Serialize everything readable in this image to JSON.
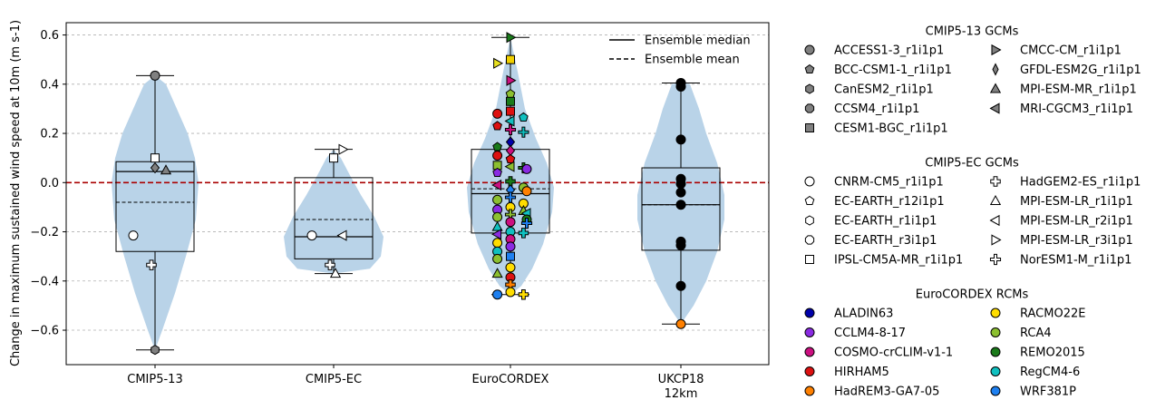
{
  "chart_data": {
    "type": "violin",
    "ylabel": "Change in maximum sustained wind speed at 10m (m s-1)",
    "ylim": [
      -0.74,
      0.65
    ],
    "yticks": [
      -0.6,
      -0.4,
      -0.2,
      0.0,
      0.2,
      0.4,
      0.6
    ],
    "ytick_labels": [
      "−0.6",
      "−0.4",
      "−0.2",
      "0.0",
      "0.2",
      "0.4",
      "0.6"
    ],
    "grid": "horizontal dashed",
    "zero_line_color": "#aa0000",
    "violin_color": "#b9d3e8",
    "categories": [
      "CMIP5-13",
      "CMIP5-EC",
      "EuroCORDEX",
      "UKCP18\n12km"
    ],
    "category_labels": [
      [
        "CMIP5-13"
      ],
      [
        "CMIP5-EC"
      ],
      [
        "EuroCORDEX"
      ],
      [
        "UKCP18",
        "12km"
      ]
    ],
    "groups": [
      {
        "name": "CMIP5-13",
        "min": -0.68,
        "q1": -0.28,
        "median": 0.045,
        "mean": -0.08,
        "q3": 0.085,
        "max": 0.435,
        "points": [
          {
            "y": 0.435,
            "shape": "circle",
            "fill": "#808080"
          },
          {
            "y": 0.1,
            "shape": "square",
            "fill": "#ffffff"
          },
          {
            "y": 0.06,
            "shape": "diamond",
            "fill": "#808080"
          },
          {
            "y": 0.05,
            "shape": "triangle-up",
            "fill": "#808080"
          },
          {
            "y": -0.215,
            "shape": "circle",
            "fill": "#ffffff"
          },
          {
            "y": -0.335,
            "shape": "plus",
            "fill": "#ffffff"
          },
          {
            "y": -0.68,
            "shape": "hexagon",
            "fill": "#808080"
          }
        ]
      },
      {
        "name": "CMIP5-EC",
        "min": -0.37,
        "q1": -0.31,
        "median": -0.22,
        "mean": -0.15,
        "q3": 0.02,
        "max": 0.135,
        "points": [
          {
            "y": 0.135,
            "shape": "triangle-right",
            "fill": "#ffffff"
          },
          {
            "y": 0.1,
            "shape": "square",
            "fill": "#ffffff"
          },
          {
            "y": -0.215,
            "shape": "circle",
            "fill": "#ffffff"
          },
          {
            "y": -0.215,
            "shape": "triangle-left",
            "fill": "#ffffff"
          },
          {
            "y": -0.335,
            "shape": "plus",
            "fill": "#ffffff"
          },
          {
            "y": -0.37,
            "shape": "triangle-up",
            "fill": "#ffffff"
          }
        ]
      },
      {
        "name": "EuroCORDEX",
        "min": -0.455,
        "q1": -0.205,
        "median": -0.045,
        "mean": -0.025,
        "q3": 0.135,
        "max": 0.59,
        "points": [
          {
            "y": 0.59,
            "shape": "triangle-right",
            "fill": "#1a7a1a"
          },
          {
            "y": 0.5,
            "shape": "square",
            "fill": "#f0d000"
          },
          {
            "y": 0.485,
            "shape": "triangle-right",
            "fill": "#e8e020"
          },
          {
            "y": 0.415,
            "shape": "triangle-right",
            "fill": "#cc1080"
          },
          {
            "y": 0.36,
            "shape": "pentagon",
            "fill": "#8cc030"
          },
          {
            "y": 0.33,
            "shape": "square",
            "fill": "#1a7a1a"
          },
          {
            "y": 0.29,
            "shape": "square",
            "fill": "#dd1111"
          },
          {
            "y": 0.28,
            "shape": "circle",
            "fill": "#dd1111"
          },
          {
            "y": 0.265,
            "shape": "pentagon",
            "fill": "#10c0c0"
          },
          {
            "y": 0.25,
            "shape": "triangle-left",
            "fill": "#10c0c0"
          },
          {
            "y": 0.23,
            "shape": "pentagon",
            "fill": "#dd1111"
          },
          {
            "y": 0.215,
            "shape": "cross",
            "fill": "#cc1080"
          },
          {
            "y": 0.205,
            "shape": "cross",
            "fill": "#10c0c0"
          },
          {
            "y": 0.165,
            "shape": "diamond",
            "fill": "#0000aa"
          },
          {
            "y": 0.145,
            "shape": "pentagon",
            "fill": "#1a7a1a"
          },
          {
            "y": 0.13,
            "shape": "diamond",
            "fill": "#cc1080"
          },
          {
            "y": 0.11,
            "shape": "circle",
            "fill": "#dd1111"
          },
          {
            "y": 0.095,
            "shape": "pentagon",
            "fill": "#dd1111"
          },
          {
            "y": 0.07,
            "shape": "square",
            "fill": "#8cc030"
          },
          {
            "y": 0.065,
            "shape": "triangle-left",
            "fill": "#8cc030"
          },
          {
            "y": 0.06,
            "shape": "cross",
            "fill": "#1a7a1a"
          },
          {
            "y": 0.055,
            "shape": "circle",
            "fill": "#8a2be2"
          },
          {
            "y": 0.04,
            "shape": "pentagon",
            "fill": "#8a2be2"
          },
          {
            "y": 0.005,
            "shape": "plus",
            "fill": "#1a7a1a"
          },
          {
            "y": -0.01,
            "shape": "triangle-left",
            "fill": "#cc1080"
          },
          {
            "y": -0.02,
            "shape": "circle",
            "fill": "#8cc030"
          },
          {
            "y": -0.03,
            "shape": "diamond",
            "fill": "#1e80f0"
          },
          {
            "y": -0.035,
            "shape": "circle",
            "fill": "#ff8000"
          },
          {
            "y": -0.06,
            "shape": "cross",
            "fill": "#1e80f0"
          },
          {
            "y": -0.07,
            "shape": "circle",
            "fill": "#8cc030"
          },
          {
            "y": -0.085,
            "shape": "circle",
            "fill": "#ffdd00"
          },
          {
            "y": -0.1,
            "shape": "circle",
            "fill": "#ffdd00"
          },
          {
            "y": -0.11,
            "shape": "circle",
            "fill": "#8a2be2"
          },
          {
            "y": -0.115,
            "shape": "triangle-up",
            "fill": "#8cc030"
          },
          {
            "y": -0.125,
            "shape": "triangle-left",
            "fill": "#10c0c0"
          },
          {
            "y": -0.13,
            "shape": "cross",
            "fill": "#8cc030"
          },
          {
            "y": -0.14,
            "shape": "circle",
            "fill": "#8cc030"
          },
          {
            "y": -0.15,
            "shape": "circle",
            "fill": "#1a7a1a"
          },
          {
            "y": -0.16,
            "shape": "circle",
            "fill": "#cc1080"
          },
          {
            "y": -0.165,
            "shape": "cross",
            "fill": "#1e80f0"
          },
          {
            "y": -0.18,
            "shape": "triangle-up",
            "fill": "#10c0c0"
          },
          {
            "y": -0.2,
            "shape": "circle",
            "fill": "#10c0c0"
          },
          {
            "y": -0.205,
            "shape": "plus",
            "fill": "#10c0c0"
          },
          {
            "y": -0.21,
            "shape": "triangle-left",
            "fill": "#8a2be2"
          },
          {
            "y": -0.23,
            "shape": "circle",
            "fill": "#cc1080"
          },
          {
            "y": -0.245,
            "shape": "circle",
            "fill": "#ffdd00"
          },
          {
            "y": -0.26,
            "shape": "circle",
            "fill": "#8a2be2"
          },
          {
            "y": -0.28,
            "shape": "circle",
            "fill": "#10c0c0"
          },
          {
            "y": -0.3,
            "shape": "square",
            "fill": "#1e80f0"
          },
          {
            "y": -0.31,
            "shape": "circle",
            "fill": "#8cc030"
          },
          {
            "y": -0.345,
            "shape": "circle",
            "fill": "#ffdd00"
          },
          {
            "y": -0.37,
            "shape": "triangle-up",
            "fill": "#8cc030"
          },
          {
            "y": -0.385,
            "shape": "circle",
            "fill": "#dd1111"
          },
          {
            "y": -0.415,
            "shape": "plus",
            "fill": "#ff8000"
          },
          {
            "y": -0.445,
            "shape": "circle",
            "fill": "#ffdd00"
          },
          {
            "y": -0.455,
            "shape": "circle",
            "fill": "#1e80f0"
          },
          {
            "y": -0.455,
            "shape": "plus",
            "fill": "#ffdd00"
          }
        ]
      },
      {
        "name": "UKCP18 12km",
        "min": -0.575,
        "q1": -0.275,
        "median": -0.09,
        "mean": -0.09,
        "q3": 0.06,
        "max": 0.405,
        "points": [
          {
            "y": 0.405,
            "shape": "circle",
            "fill": "#000000"
          },
          {
            "y": 0.39,
            "shape": "circle",
            "fill": "#000000"
          },
          {
            "y": 0.175,
            "shape": "circle",
            "fill": "#000000"
          },
          {
            "y": 0.015,
            "shape": "circle",
            "fill": "#000000"
          },
          {
            "y": -0.005,
            "shape": "circle",
            "fill": "#000000"
          },
          {
            "y": -0.04,
            "shape": "circle",
            "fill": "#000000"
          },
          {
            "y": -0.09,
            "shape": "circle",
            "fill": "#000000"
          },
          {
            "y": -0.24,
            "shape": "circle",
            "fill": "#000000"
          },
          {
            "y": -0.255,
            "shape": "circle",
            "fill": "#000000"
          },
          {
            "y": -0.42,
            "shape": "circle",
            "fill": "#000000"
          },
          {
            "y": -0.575,
            "shape": "circle",
            "fill": "#ff8000"
          }
        ]
      }
    ],
    "inner_legend": [
      {
        "label": "Ensemble median",
        "style": "solid"
      },
      {
        "label": "Ensemble mean",
        "style": "dashed"
      }
    ],
    "legend_sections": [
      {
        "title": "CMIP5-13 GCMs",
        "columns": 2,
        "fill": "#808080",
        "entries": [
          {
            "label": "ACCESS1-3_r1i1p1",
            "shape": "circle"
          },
          {
            "label": "BCC-CSM1-1_r1i1p1",
            "shape": "pentagon"
          },
          {
            "label": "CanESM2_r1i1p1",
            "shape": "hexagon"
          },
          {
            "label": "CCSM4_r1i1p1",
            "shape": "octagon"
          },
          {
            "label": "CESM1-BGC_r1i1p1",
            "shape": "square"
          },
          {
            "label": "CMCC-CM_r1i1p1",
            "shape": "triangle-right"
          },
          {
            "label": "GFDL-ESM2G_r1i1p1",
            "shape": "thin-diamond"
          },
          {
            "label": "MPI-ESM-MR_r1i1p1",
            "shape": "triangle-up"
          },
          {
            "label": "MRI-CGCM3_r1i1p1",
            "shape": "triangle-left"
          }
        ]
      },
      {
        "title": "CMIP5-EC GCMs",
        "columns": 2,
        "fill": "#ffffff",
        "entries": [
          {
            "label": "CNRM-CM5_r1i1p1",
            "shape": "circle"
          },
          {
            "label": "EC-EARTH_r12i1p1",
            "shape": "pentagon"
          },
          {
            "label": "EC-EARTH_r1i1p1",
            "shape": "hexagon"
          },
          {
            "label": "EC-EARTH_r3i1p1",
            "shape": "octagon"
          },
          {
            "label": "IPSL-CM5A-MR_r1i1p1",
            "shape": "square"
          },
          {
            "label": "HadGEM2-ES_r1i1p1",
            "shape": "plus"
          },
          {
            "label": "MPI-ESM-LR_r1i1p1",
            "shape": "triangle-up"
          },
          {
            "label": "MPI-ESM-LR_r2i1p1",
            "shape": "triangle-left"
          },
          {
            "label": "MPI-ESM-LR_r3i1p1",
            "shape": "triangle-right"
          },
          {
            "label": "NorESM1-M_r1i1p1",
            "shape": "cross"
          }
        ]
      },
      {
        "title": "EuroCORDEX RCMs",
        "columns": 2,
        "shape": "circle",
        "entries": [
          {
            "label": "ALADIN63",
            "color": "#0000aa"
          },
          {
            "label": "CCLM4-8-17",
            "color": "#8a2be2"
          },
          {
            "label": "COSMO-crCLIM-v1-1",
            "color": "#cc1080"
          },
          {
            "label": "HIRHAM5",
            "color": "#dd1111"
          },
          {
            "label": "HadREM3-GA7-05",
            "color": "#ff8000"
          },
          {
            "label": "RACMO22E",
            "color": "#ffdd00"
          },
          {
            "label": "RCA4",
            "color": "#8cc030"
          },
          {
            "label": "REMO2015",
            "color": "#1a7a1a"
          },
          {
            "label": "RegCM4-6",
            "color": "#10c0c0"
          },
          {
            "label": "WRF381P",
            "color": "#1e80f0"
          }
        ]
      }
    ]
  }
}
